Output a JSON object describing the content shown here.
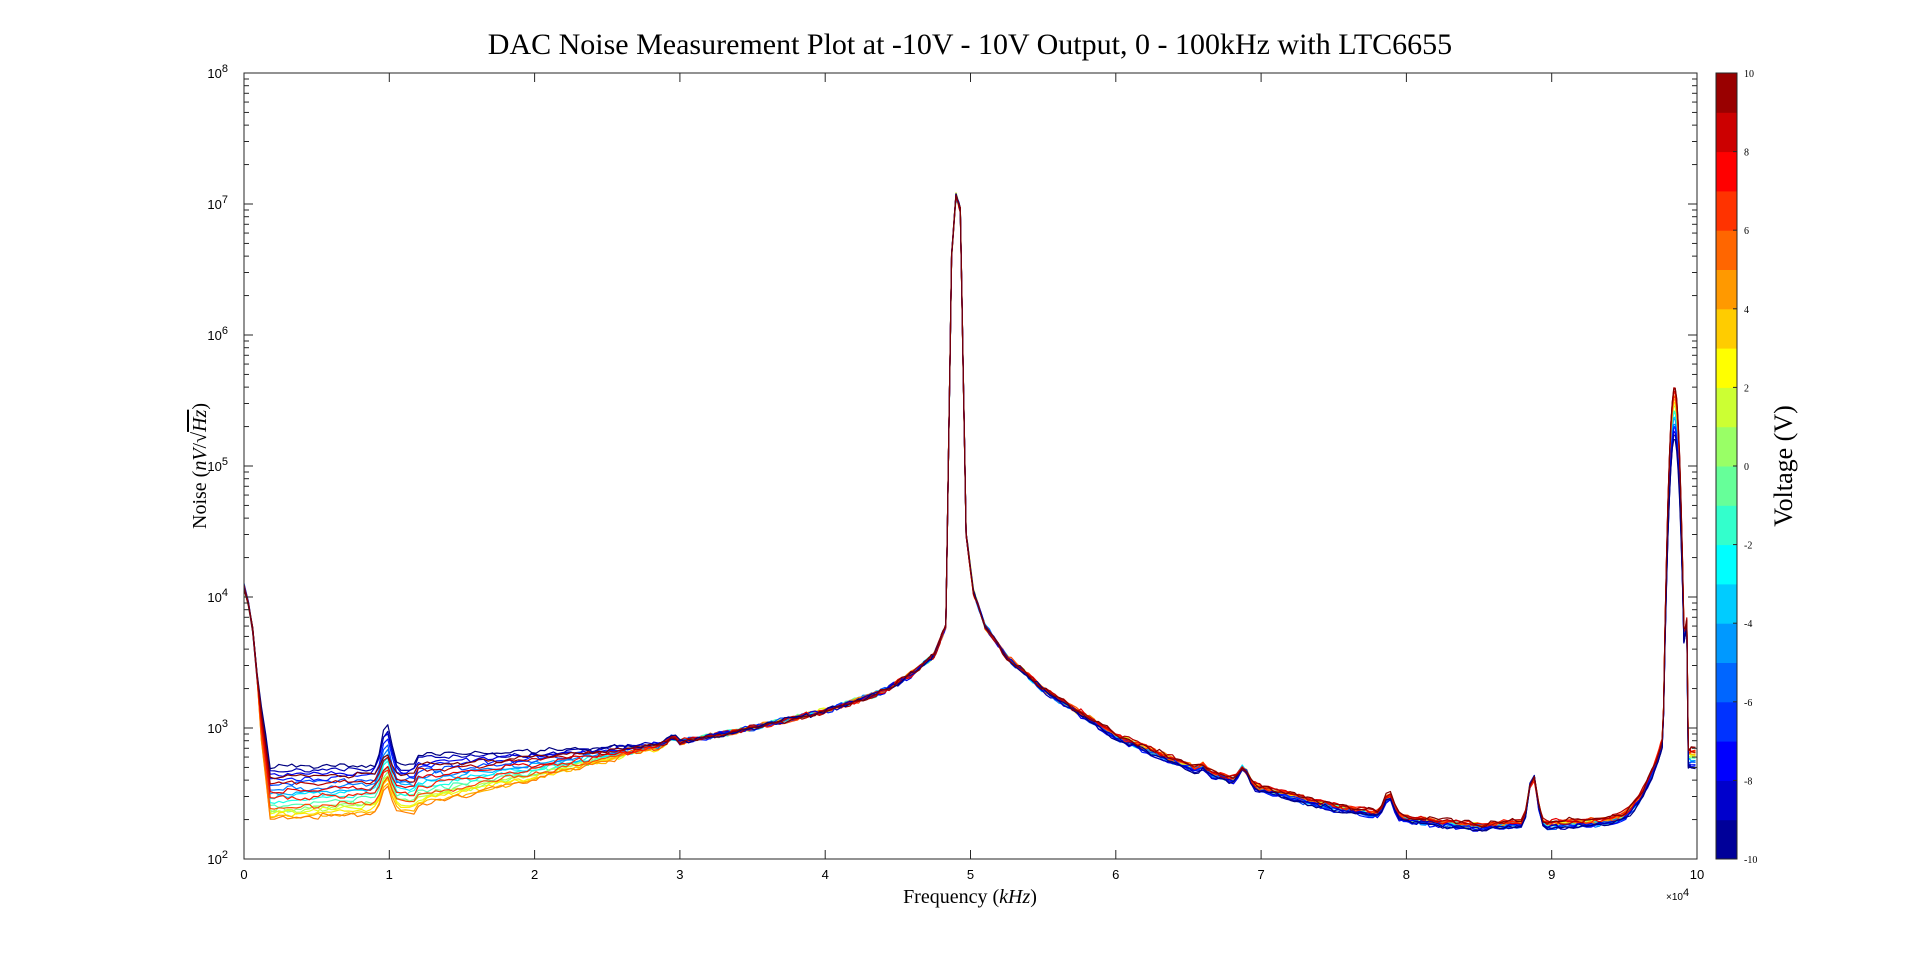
{
  "chart_data": {
    "type": "line",
    "title": "DAC Noise Measurement Plot at -10V - 10V Output, 0 - 100kHz with LTC6655",
    "xlabel": "Frequency (kHz)",
    "ylabel": "Noise (nV/√Hz)",
    "xscale": "linear",
    "yscale": "log",
    "xlim": [
      0,
      100000
    ],
    "ylim": [
      100,
      100000000
    ],
    "x_ticks": [
      "0",
      "1",
      "2",
      "3",
      "4",
      "5",
      "6",
      "7",
      "8",
      "9",
      "10"
    ],
    "x_multiplier": "×10",
    "x_multiplier_exp": "4",
    "y_ticks": [
      {
        "base": "10",
        "exp": "2"
      },
      {
        "base": "10",
        "exp": "3"
      },
      {
        "base": "10",
        "exp": "4"
      },
      {
        "base": "10",
        "exp": "5"
      },
      {
        "base": "10",
        "exp": "6"
      },
      {
        "base": "10",
        "exp": "7"
      },
      {
        "base": "10",
        "exp": "8"
      }
    ],
    "grid": false,
    "colorbar": {
      "label": "Voltage (V)",
      "range": [
        -10,
        10
      ],
      "ticks": [
        "-10",
        "-8",
        "-6",
        "-4",
        "-2",
        "0",
        "2",
        "4",
        "6",
        "8",
        "10"
      ],
      "levels": 20,
      "colormap": "jet"
    },
    "series_voltages": [
      -10,
      -9,
      -8,
      -7,
      -6,
      -5,
      -4,
      -3,
      -2,
      -1,
      0,
      1,
      2,
      3,
      4,
      5,
      6,
      7,
      8,
      9,
      10
    ],
    "baseline_noise_at_5kHz_by_voltage": {
      "-10": 510,
      "-5": 350,
      "0": 250,
      "5": 210,
      "10": 430
    },
    "peaks": [
      {
        "x": 0,
        "y": 12000
      },
      {
        "x": 9800,
        "y": 830
      },
      {
        "x": 49000,
        "y": 11500000
      },
      {
        "x": 68800,
        "y": 520
      },
      {
        "x": 78800,
        "y": 300
      },
      {
        "x": 88700,
        "y": 420
      },
      {
        "x": 98400,
        "y": 400000
      }
    ],
    "shared_curve": {
      "x": [
        12000,
        20000,
        30000,
        35000,
        40000,
        44000,
        46000,
        47500,
        48300,
        48700,
        49000,
        49300,
        49700,
        50200,
        51000,
        52500,
        55000,
        60000,
        65000,
        70000,
        75000,
        80000,
        85000,
        88000
      ],
      "y": [
        560,
        620,
        780,
        1000,
        1350,
        1900,
        2600,
        3600,
        6000,
        4000000,
        11500000,
        9000000,
        30000,
        11000,
        6000,
        3500,
        2000,
        900,
        530,
        360,
        260,
        210,
        185,
        195
      ]
    }
  }
}
